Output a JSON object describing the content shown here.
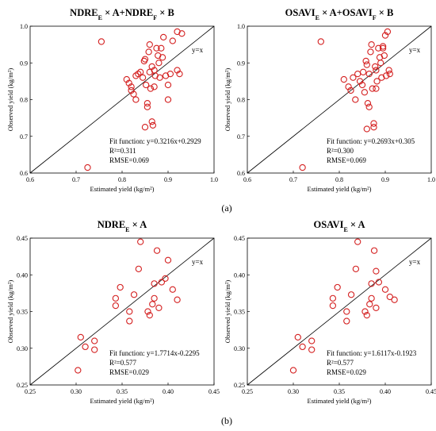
{
  "captions": [
    "(a)",
    "(b)"
  ],
  "chart_data": [
    {
      "type": "scatter",
      "title": "NDRE_E × A+NDRE_F × B",
      "xlabel": "Estimated yield (kg/m²)",
      "ylabel": "Observed yield (kg/m²)",
      "xlim": [
        0.6,
        1.0
      ],
      "ylim": [
        0.6,
        1.0
      ],
      "xticks": [
        "0.6",
        "0.7",
        "0.8",
        "0.9",
        "1.0"
      ],
      "yticks": [
        "0.6",
        "0.7",
        "0.8",
        "0.9",
        "1.0"
      ],
      "grid": false,
      "reference_line_label": "y=x",
      "fit_function": "Fit function: y=0.3216x+0.2929",
      "r2": "R²=0.311",
      "rmse": "RMSE=0.069",
      "marker_color": "#d42020",
      "points": [
        [
          0.755,
          0.958
        ],
        [
          0.725,
          0.615
        ],
        [
          0.81,
          0.855
        ],
        [
          0.815,
          0.845
        ],
        [
          0.82,
          0.835
        ],
        [
          0.82,
          0.825
        ],
        [
          0.825,
          0.815
        ],
        [
          0.83,
          0.865
        ],
        [
          0.83,
          0.8
        ],
        [
          0.835,
          0.87
        ],
        [
          0.84,
          0.875
        ],
        [
          0.845,
          0.86
        ],
        [
          0.848,
          0.905
        ],
        [
          0.85,
          0.91
        ],
        [
          0.852,
          0.84
        ],
        [
          0.855,
          0.79
        ],
        [
          0.855,
          0.78
        ],
        [
          0.858,
          0.93
        ],
        [
          0.86,
          0.95
        ],
        [
          0.86,
          0.875
        ],
        [
          0.862,
          0.83
        ],
        [
          0.865,
          0.89
        ],
        [
          0.865,
          0.74
        ],
        [
          0.867,
          0.73
        ],
        [
          0.87,
          0.88
        ],
        [
          0.87,
          0.835
        ],
        [
          0.872,
          0.865
        ],
        [
          0.875,
          0.94
        ],
        [
          0.878,
          0.92
        ],
        [
          0.88,
          0.9
        ],
        [
          0.882,
          0.86
        ],
        [
          0.885,
          0.94
        ],
        [
          0.888,
          0.915
        ],
        [
          0.89,
          0.97
        ],
        [
          0.895,
          0.865
        ],
        [
          0.9,
          0.84
        ],
        [
          0.9,
          0.8
        ],
        [
          0.905,
          0.87
        ],
        [
          0.91,
          0.96
        ],
        [
          0.92,
          0.985
        ],
        [
          0.92,
          0.88
        ],
        [
          0.925,
          0.87
        ],
        [
          0.93,
          0.98
        ],
        [
          0.85,
          0.725
        ]
      ]
    },
    {
      "type": "scatter",
      "title": "OSAVI_E × A+OSAVI_F × B",
      "xlabel": "Estimated yield (kg/m²)",
      "ylabel": "Observed yield (kg/m²)",
      "xlim": [
        0.6,
        1.0
      ],
      "ylim": [
        0.6,
        1.0
      ],
      "xticks": [
        "0.6",
        "0.7",
        "0.8",
        "0.9",
        "1.0"
      ],
      "yticks": [
        "0.6",
        "0.7",
        "0.8",
        "0.9",
        "1.0"
      ],
      "grid": false,
      "reference_line_label": "y=x",
      "fit_function": "Fit function: y=0.2693x+0.305",
      "r2": "R²=0.300",
      "rmse": "RMSE=0.069",
      "marker_color": "#d42020",
      "points": [
        [
          0.76,
          0.958
        ],
        [
          0.72,
          0.615
        ],
        [
          0.81,
          0.855
        ],
        [
          0.82,
          0.835
        ],
        [
          0.825,
          0.825
        ],
        [
          0.83,
          0.86
        ],
        [
          0.835,
          0.8
        ],
        [
          0.84,
          0.87
        ],
        [
          0.845,
          0.85
        ],
        [
          0.85,
          0.84
        ],
        [
          0.852,
          0.875
        ],
        [
          0.855,
          0.82
        ],
        [
          0.858,
          0.905
        ],
        [
          0.86,
          0.895
        ],
        [
          0.862,
          0.79
        ],
        [
          0.865,
          0.78
        ],
        [
          0.865,
          0.87
        ],
        [
          0.868,
          0.93
        ],
        [
          0.87,
          0.95
        ],
        [
          0.872,
          0.83
        ],
        [
          0.875,
          0.735
        ],
        [
          0.875,
          0.725
        ],
        [
          0.878,
          0.89
        ],
        [
          0.88,
          0.88
        ],
        [
          0.882,
          0.85
        ],
        [
          0.885,
          0.94
        ],
        [
          0.888,
          0.915
        ],
        [
          0.89,
          0.9
        ],
        [
          0.892,
          0.86
        ],
        [
          0.895,
          0.945
        ],
        [
          0.898,
          0.92
        ],
        [
          0.9,
          0.975
        ],
        [
          0.902,
          0.865
        ],
        [
          0.905,
          0.985
        ],
        [
          0.908,
          0.88
        ],
        [
          0.91,
          0.87
        ],
        [
          0.86,
          0.72
        ],
        [
          0.88,
          0.83
        ],
        [
          0.895,
          0.94
        ]
      ]
    },
    {
      "type": "scatter",
      "title": "NDRE_E × A",
      "xlabel": "Estimated yield (kg/m²)",
      "ylabel": "Observed yield (kg/m²)",
      "xlim": [
        0.25,
        0.45
      ],
      "ylim": [
        0.25,
        0.45
      ],
      "xticks": [
        "0.25",
        "0.30",
        "0.35",
        "0.40",
        "0.45"
      ],
      "yticks": [
        "0.25",
        "0.30",
        "0.35",
        "0.40",
        "0.45"
      ],
      "grid": false,
      "reference_line_label": "y=x",
      "fit_function": "Fit function: y=1.7714x-0.2295",
      "r2": "R²=0.577",
      "rmse": "RMSE=0.029",
      "marker_color": "#d42020",
      "points": [
        [
          0.302,
          0.27
        ],
        [
          0.305,
          0.315
        ],
        [
          0.31,
          0.302
        ],
        [
          0.32,
          0.31
        ],
        [
          0.32,
          0.298
        ],
        [
          0.343,
          0.368
        ],
        [
          0.343,
          0.358
        ],
        [
          0.348,
          0.383
        ],
        [
          0.358,
          0.35
        ],
        [
          0.358,
          0.337
        ],
        [
          0.363,
          0.373
        ],
        [
          0.368,
          0.408
        ],
        [
          0.37,
          0.445
        ],
        [
          0.378,
          0.35
        ],
        [
          0.38,
          0.345
        ],
        [
          0.383,
          0.36
        ],
        [
          0.385,
          0.368
        ],
        [
          0.385,
          0.388
        ],
        [
          0.388,
          0.433
        ],
        [
          0.39,
          0.355
        ],
        [
          0.393,
          0.39
        ],
        [
          0.397,
          0.395
        ],
        [
          0.4,
          0.42
        ],
        [
          0.405,
          0.38
        ],
        [
          0.41,
          0.366
        ]
      ]
    },
    {
      "type": "scatter",
      "title": "OSAVI_E × A",
      "xlabel": "Estimated yield (kg/m²)",
      "ylabel": "Observed yield (kg/m²)",
      "xlim": [
        0.25,
        0.45
      ],
      "ylim": [
        0.25,
        0.45
      ],
      "xticks": [
        "0.25",
        "0.30",
        "0.35",
        "0.40",
        "0.45"
      ],
      "yticks": [
        "0.25",
        "0.30",
        "0.35",
        "0.40",
        "0.45"
      ],
      "grid": false,
      "reference_line_label": "y=x",
      "fit_function": "Fit function: y=1.6117x-0.1923",
      "r2": "R²=0.577",
      "rmse": "RMSE=0.029",
      "marker_color": "#d42020",
      "points": [
        [
          0.3,
          0.27
        ],
        [
          0.305,
          0.315
        ],
        [
          0.31,
          0.302
        ],
        [
          0.32,
          0.31
        ],
        [
          0.32,
          0.298
        ],
        [
          0.343,
          0.368
        ],
        [
          0.343,
          0.358
        ],
        [
          0.348,
          0.383
        ],
        [
          0.358,
          0.35
        ],
        [
          0.358,
          0.337
        ],
        [
          0.363,
          0.373
        ],
        [
          0.368,
          0.408
        ],
        [
          0.37,
          0.445
        ],
        [
          0.378,
          0.35
        ],
        [
          0.38,
          0.345
        ],
        [
          0.383,
          0.36
        ],
        [
          0.385,
          0.368
        ],
        [
          0.385,
          0.388
        ],
        [
          0.388,
          0.433
        ],
        [
          0.39,
          0.355
        ],
        [
          0.393,
          0.39
        ],
        [
          0.39,
          0.405
        ],
        [
          0.4,
          0.38
        ],
        [
          0.405,
          0.37
        ],
        [
          0.41,
          0.366
        ]
      ]
    }
  ]
}
